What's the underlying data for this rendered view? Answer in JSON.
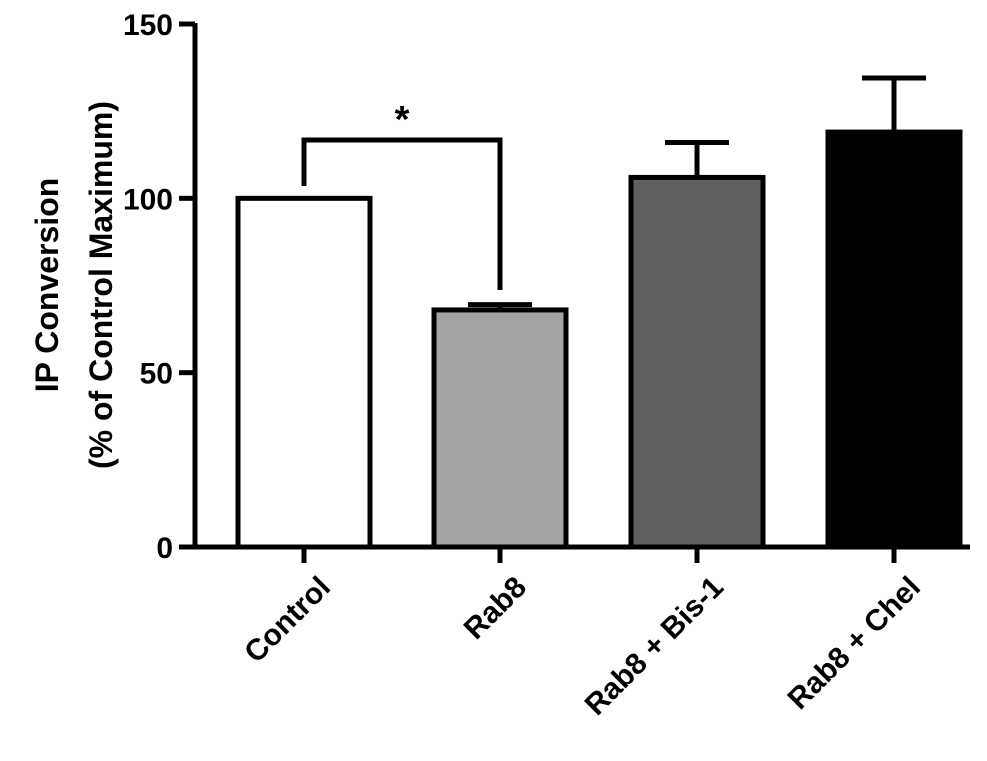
{
  "chart_data": {
    "type": "bar",
    "title": "",
    "xlabel": "",
    "ylabel_lines": [
      "IP Conversion",
      "(% of Control Maximum)"
    ],
    "ylim": [
      0,
      150
    ],
    "yticks": [
      0,
      50,
      100,
      150
    ],
    "categories": [
      "Control",
      "Rab8",
      "Rab8 + Bis-1",
      "Rab8 + Chel"
    ],
    "values": [
      100,
      68,
      106,
      119
    ],
    "errors": [
      0,
      1.5,
      10,
      15.5
    ],
    "colors": [
      "#ffffff",
      "#a3a3a6",
      "#606062",
      "#000000"
    ],
    "grid": false,
    "significance": [
      {
        "from": 0,
        "to": 1,
        "label": "*"
      }
    ]
  }
}
